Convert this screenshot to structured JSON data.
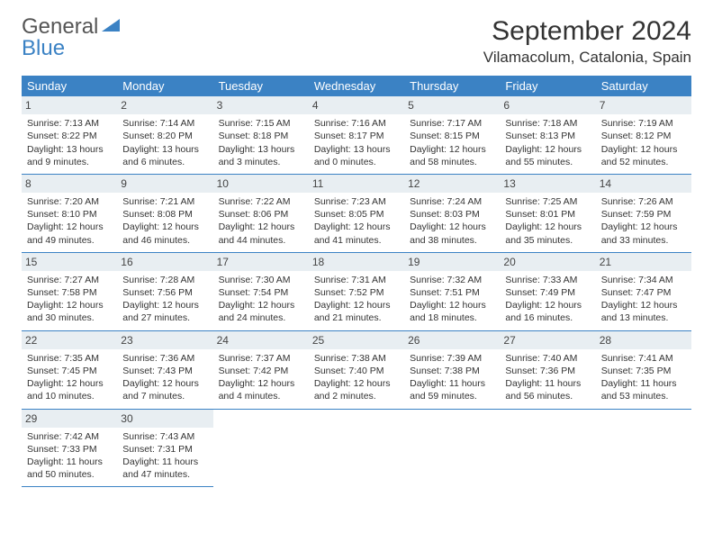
{
  "logo": {
    "text_gray": "General",
    "text_blue": "Blue"
  },
  "title": "September 2024",
  "location": "Vilamacolum, Catalonia, Spain",
  "colors": {
    "header_bg": "#3b82c4",
    "header_text": "#ffffff",
    "daynum_bg": "#e8eef2",
    "border": "#3b82c4",
    "logo_gray": "#666666",
    "logo_blue": "#3b82c4"
  },
  "columns": [
    "Sunday",
    "Monday",
    "Tuesday",
    "Wednesday",
    "Thursday",
    "Friday",
    "Saturday"
  ],
  "weeks": [
    [
      {
        "n": "1",
        "sunrise": "7:13 AM",
        "sunset": "8:22 PM",
        "daylight": "13 hours and 9 minutes."
      },
      {
        "n": "2",
        "sunrise": "7:14 AM",
        "sunset": "8:20 PM",
        "daylight": "13 hours and 6 minutes."
      },
      {
        "n": "3",
        "sunrise": "7:15 AM",
        "sunset": "8:18 PM",
        "daylight": "13 hours and 3 minutes."
      },
      {
        "n": "4",
        "sunrise": "7:16 AM",
        "sunset": "8:17 PM",
        "daylight": "13 hours and 0 minutes."
      },
      {
        "n": "5",
        "sunrise": "7:17 AM",
        "sunset": "8:15 PM",
        "daylight": "12 hours and 58 minutes."
      },
      {
        "n": "6",
        "sunrise": "7:18 AM",
        "sunset": "8:13 PM",
        "daylight": "12 hours and 55 minutes."
      },
      {
        "n": "7",
        "sunrise": "7:19 AM",
        "sunset": "8:12 PM",
        "daylight": "12 hours and 52 minutes."
      }
    ],
    [
      {
        "n": "8",
        "sunrise": "7:20 AM",
        "sunset": "8:10 PM",
        "daylight": "12 hours and 49 minutes."
      },
      {
        "n": "9",
        "sunrise": "7:21 AM",
        "sunset": "8:08 PM",
        "daylight": "12 hours and 46 minutes."
      },
      {
        "n": "10",
        "sunrise": "7:22 AM",
        "sunset": "8:06 PM",
        "daylight": "12 hours and 44 minutes."
      },
      {
        "n": "11",
        "sunrise": "7:23 AM",
        "sunset": "8:05 PM",
        "daylight": "12 hours and 41 minutes."
      },
      {
        "n": "12",
        "sunrise": "7:24 AM",
        "sunset": "8:03 PM",
        "daylight": "12 hours and 38 minutes."
      },
      {
        "n": "13",
        "sunrise": "7:25 AM",
        "sunset": "8:01 PM",
        "daylight": "12 hours and 35 minutes."
      },
      {
        "n": "14",
        "sunrise": "7:26 AM",
        "sunset": "7:59 PM",
        "daylight": "12 hours and 33 minutes."
      }
    ],
    [
      {
        "n": "15",
        "sunrise": "7:27 AM",
        "sunset": "7:58 PM",
        "daylight": "12 hours and 30 minutes."
      },
      {
        "n": "16",
        "sunrise": "7:28 AM",
        "sunset": "7:56 PM",
        "daylight": "12 hours and 27 minutes."
      },
      {
        "n": "17",
        "sunrise": "7:30 AM",
        "sunset": "7:54 PM",
        "daylight": "12 hours and 24 minutes."
      },
      {
        "n": "18",
        "sunrise": "7:31 AM",
        "sunset": "7:52 PM",
        "daylight": "12 hours and 21 minutes."
      },
      {
        "n": "19",
        "sunrise": "7:32 AM",
        "sunset": "7:51 PM",
        "daylight": "12 hours and 18 minutes."
      },
      {
        "n": "20",
        "sunrise": "7:33 AM",
        "sunset": "7:49 PM",
        "daylight": "12 hours and 16 minutes."
      },
      {
        "n": "21",
        "sunrise": "7:34 AM",
        "sunset": "7:47 PM",
        "daylight": "12 hours and 13 minutes."
      }
    ],
    [
      {
        "n": "22",
        "sunrise": "7:35 AM",
        "sunset": "7:45 PM",
        "daylight": "12 hours and 10 minutes."
      },
      {
        "n": "23",
        "sunrise": "7:36 AM",
        "sunset": "7:43 PM",
        "daylight": "12 hours and 7 minutes."
      },
      {
        "n": "24",
        "sunrise": "7:37 AM",
        "sunset": "7:42 PM",
        "daylight": "12 hours and 4 minutes."
      },
      {
        "n": "25",
        "sunrise": "7:38 AM",
        "sunset": "7:40 PM",
        "daylight": "12 hours and 2 minutes."
      },
      {
        "n": "26",
        "sunrise": "7:39 AM",
        "sunset": "7:38 PM",
        "daylight": "11 hours and 59 minutes."
      },
      {
        "n": "27",
        "sunrise": "7:40 AM",
        "sunset": "7:36 PM",
        "daylight": "11 hours and 56 minutes."
      },
      {
        "n": "28",
        "sunrise": "7:41 AM",
        "sunset": "7:35 PM",
        "daylight": "11 hours and 53 minutes."
      }
    ],
    [
      {
        "n": "29",
        "sunrise": "7:42 AM",
        "sunset": "7:33 PM",
        "daylight": "11 hours and 50 minutes."
      },
      {
        "n": "30",
        "sunrise": "7:43 AM",
        "sunset": "7:31 PM",
        "daylight": "11 hours and 47 minutes."
      },
      null,
      null,
      null,
      null,
      null
    ]
  ],
  "labels": {
    "sunrise": "Sunrise:",
    "sunset": "Sunset:",
    "daylight": "Daylight:"
  }
}
